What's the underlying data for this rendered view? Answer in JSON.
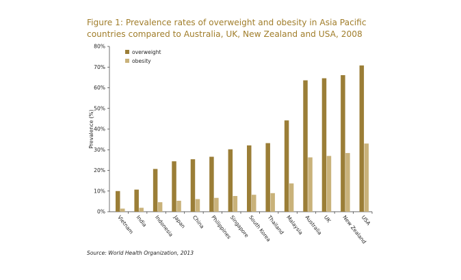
{
  "chart_data": {
    "type": "bar",
    "title": "Figure 1: Prevalence rates of overweight and obesity in Asia Pacific countries compared to Australia, UK, New Zealand and USA, 2008",
    "xlabel": "",
    "ylabel": "Prevalence (%)",
    "ylim": [
      0,
      80
    ],
    "yticks": [
      0,
      10,
      20,
      30,
      40,
      50,
      60,
      70,
      80
    ],
    "ytick_labels": [
      "0%",
      "10%",
      "20%",
      "30%",
      "40%",
      "50%",
      "60%",
      "70%",
      "80%"
    ],
    "categories": [
      "Vietnam",
      "India",
      "Indonesia",
      "Japan",
      "China",
      "Philippines",
      "Singapore",
      "South Korea",
      "Thailand",
      "Malaysia",
      "Australia",
      "UK",
      "New Zealand",
      "USA"
    ],
    "series": [
      {
        "name": "overweight",
        "color": "#9b7e37",
        "values": [
          10.0,
          10.7,
          20.7,
          24.4,
          25.4,
          26.6,
          30.2,
          32.1,
          33.2,
          44.2,
          63.6,
          64.6,
          66.1,
          70.8
        ]
      },
      {
        "name": "obesity",
        "color": "#c9b27a",
        "values": [
          1.5,
          1.9,
          4.6,
          5.3,
          6.1,
          6.7,
          7.6,
          8.2,
          9.0,
          13.7,
          26.3,
          27.0,
          28.4,
          33.0
        ]
      }
    ],
    "legend": "top-left",
    "grid": false
  },
  "source": "Source: World Health Organization, 2013"
}
